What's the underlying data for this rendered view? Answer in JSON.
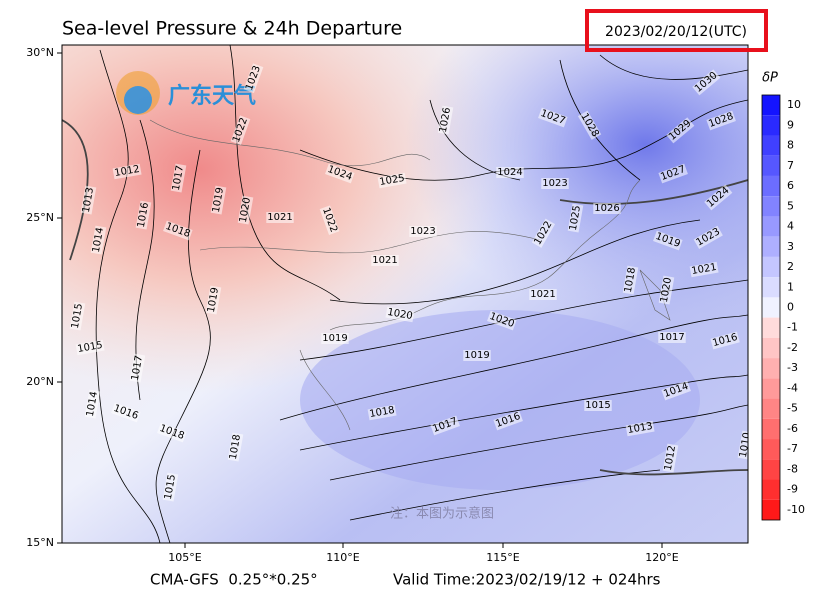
{
  "header": {
    "title": "Sea-level Pressure & 24h Departure",
    "timestamp": "2023/02/20/12(UTC)"
  },
  "axes": {
    "lat_labels": [
      "30°N",
      "25°N",
      "20°N",
      "15°N"
    ],
    "lon_labels": [
      "105°E",
      "110°E",
      "115°E",
      "120°E"
    ]
  },
  "colorbar": {
    "label": "δP",
    "ticks": [
      10,
      9,
      8,
      7,
      6,
      5,
      4,
      3,
      2,
      1,
      0,
      -1,
      -2,
      -3,
      -4,
      -5,
      -6,
      -7,
      -8,
      -9,
      -10
    ]
  },
  "isobar_labels": [
    1023,
    1022,
    1012,
    1017,
    1013,
    1016,
    1014,
    1018,
    1019,
    1020,
    1021,
    1022,
    1024,
    1025,
    1026,
    1027,
    1028,
    1024,
    1023,
    1023,
    1021,
    1025,
    1026,
    1022,
    1021,
    1020,
    1020,
    1019,
    1019,
    1019,
    1018,
    1017,
    1016,
    1015,
    1014,
    1013,
    1012,
    1010,
    1017,
    1016,
    1021,
    1023,
    1024,
    1027,
    1029,
    1028,
    1030,
    1019,
    1020,
    1018,
    1015,
    1015,
    1017,
    1014,
    1016,
    1018,
    1018,
    1015
  ],
  "footer": {
    "model": "CMA-GFS  0.25°*0.25°",
    "valid_time": "Valid Time:2023/02/19/12 + 024hrs"
  },
  "watermark": {
    "brand": "广东天气",
    "note": "注：本图为示意图"
  }
}
